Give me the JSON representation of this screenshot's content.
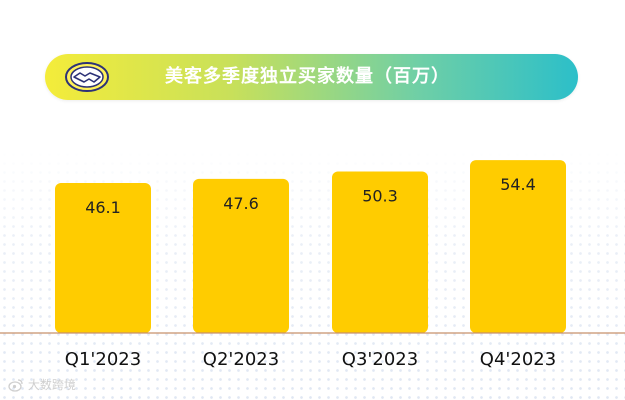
{
  "header": {
    "title": "美客多季度独立买家数量（百万）"
  },
  "chart_data": {
    "type": "bar",
    "categories": [
      "Q1'2023",
      "Q2'2023",
      "Q3'2023",
      "Q4'2023"
    ],
    "values": [
      46.1,
      47.6,
      50.3,
      54.4
    ],
    "data_labels": [
      "46.1",
      "47.6",
      "50.3",
      "54.4"
    ],
    "title": "美客多季度独立买家数量（百万）",
    "xlabel": "",
    "ylabel": "",
    "grid": false,
    "legend": "none",
    "colors": {
      "bar": "#FFCC00",
      "baseline": "#c8906a",
      "label": "#222222"
    }
  },
  "watermark": {
    "text": "大数跨境",
    "icon": "weibo-style-icon"
  }
}
